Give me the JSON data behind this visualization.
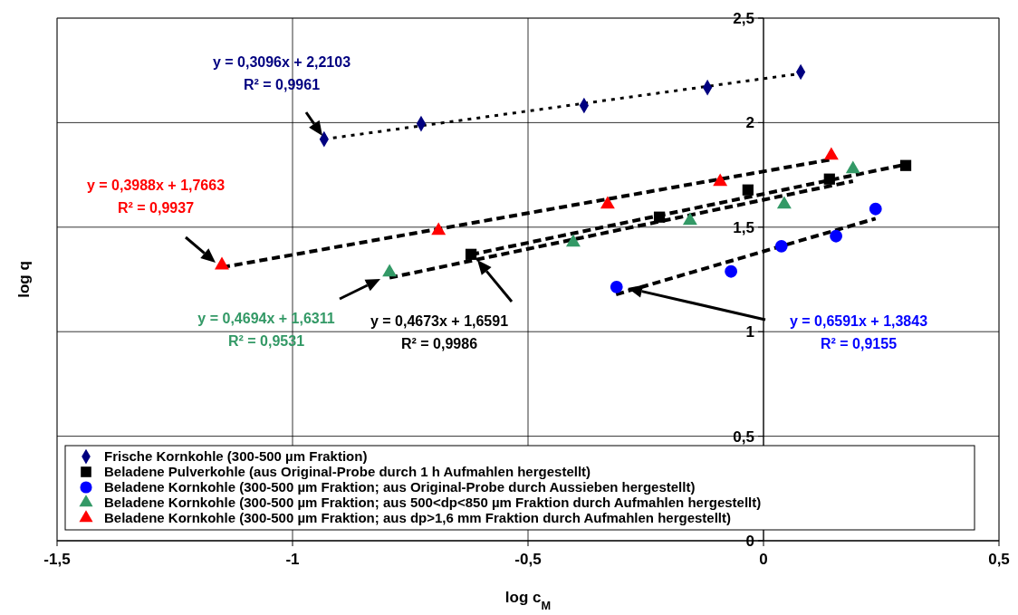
{
  "chart_data": {
    "type": "scatter",
    "xlabel": "log c$_{M}$",
    "ylabel": "log q",
    "xlim": [
      -1.5,
      0.5
    ],
    "ylim": [
      0,
      2.5
    ],
    "xticks": [
      {
        "value": -1.5,
        "label": "-1,5"
      },
      {
        "value": -1,
        "label": "-1"
      },
      {
        "value": -0.5,
        "label": "-0,5"
      },
      0,
      {
        "value": 0.5,
        "label": "0,5"
      }
    ],
    "yticks": [
      0,
      {
        "value": 0.5,
        "label": "0,5"
      },
      1,
      {
        "value": 1.5,
        "label": "1,5"
      },
      2,
      {
        "value": 2.5,
        "label": "2,5"
      }
    ],
    "grid": true,
    "legend": "bottom",
    "series": [
      {
        "name": "Frische Kornkohle (300-500 µm Fraktion)",
        "marker": "diamond",
        "color": "#000080",
        "x": [
          -0.933,
          -0.727,
          -0.381,
          -0.119,
          0.079
        ],
        "values": [
          1.921,
          1.995,
          2.082,
          2.168,
          2.242
        ]
      },
      {
        "name": "Beladene Pulverkohle (aus Original-Probe durch 1 h Aufmahlen hergestellt)",
        "marker": "square",
        "color": "#000000",
        "x": [
          -0.621,
          -0.221,
          -0.033,
          0.14,
          0.302
        ],
        "values": [
          1.37,
          1.548,
          1.678,
          1.73,
          1.795
        ]
      },
      {
        "name": "Beladene Kornkohle (300-500 µm Fraktion; aus Original-Probe durch Aussieben hergestellt)",
        "marker": "circle",
        "color": "#0000ff",
        "x": [
          -0.312,
          -0.069,
          0.038,
          0.154,
          0.238
        ],
        "values": [
          1.214,
          1.288,
          1.409,
          1.457,
          1.587
        ]
      },
      {
        "name": "Beladene Kornkohle (300-500 µm Fraktion; aus 500<dp<850 µm Fraktion durch Aufmahlen hergestellt)",
        "marker": "triangle",
        "color": "#339966",
        "x": [
          -0.794,
          -0.404,
          -0.156,
          0.044,
          0.19
        ],
        "values": [
          1.284,
          1.427,
          1.531,
          1.609,
          1.778
        ]
      },
      {
        "name": "Beladene Kornkohle (300-500 µm Fraktion; aus dp>1,6 mm Fraktion durch Aufmahlen hergestellt)",
        "marker": "triangle",
        "color": "#ff0000",
        "x": [
          -1.15,
          -0.69,
          -0.331,
          -0.092,
          0.144
        ],
        "values": [
          1.318,
          1.483,
          1.609,
          1.717,
          1.843
        ]
      },
      {
        "type": "line",
        "marker": "none",
        "line_style": "dotted",
        "color": "#000000",
        "x": [
          -0.933,
          0.079
        ],
        "values": [
          1.921,
          2.235
        ]
      },
      {
        "type": "line",
        "marker": "none",
        "line_style": "dashed",
        "color": "#000000",
        "x": [
          -0.621,
          0.302
        ],
        "values": [
          1.369,
          1.8
        ]
      },
      {
        "type": "line",
        "marker": "none",
        "line_style": "dashed",
        "color": "#000000",
        "x": [
          -0.313,
          0.238
        ],
        "values": [
          1.178,
          1.541
        ]
      },
      {
        "type": "line",
        "marker": "none",
        "line_style": "dashed",
        "color": "#000000",
        "x": [
          -0.794,
          0.19
        ],
        "values": [
          1.258,
          1.72
        ]
      },
      {
        "type": "line",
        "marker": "none",
        "line_style": "dashed",
        "color": "#000000",
        "x": [
          -1.15,
          0.144
        ],
        "values": [
          1.308,
          1.824
        ]
      }
    ],
    "annotations": [
      "y = 0,3096x + 2,2103\nR² = 0,9961",
      "y = 0,4673x + 1,6591\nR² = 0,9986",
      "y = 0,6591x + 1,3843\nR² = 0,9155",
      "y = 0,4694x + 1,6311\nR² = 0,9531",
      "y = 0,3988x + 1,7663\nR² = 0,9937"
    ]
  }
}
